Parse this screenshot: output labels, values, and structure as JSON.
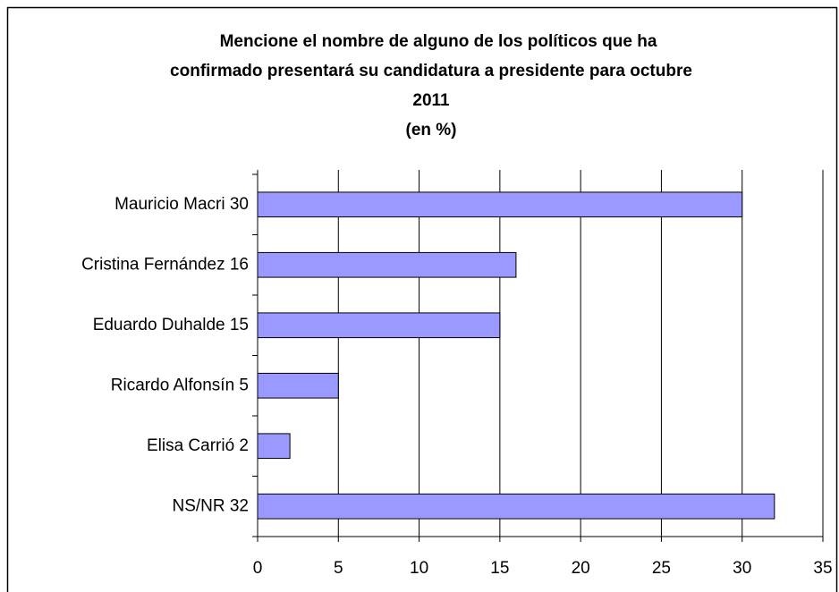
{
  "chart_data": {
    "type": "bar",
    "orientation": "horizontal",
    "title": [
      "Mencione el nombre de alguno de los políticos que ha",
      "confirmado presentará su candidatura a presidente para octubre",
      "2011"
    ],
    "subtitle": "(en %)",
    "categories": [
      "Mauricio Macri  30",
      "Cristina Fernández 16",
      "Eduardo Duhalde  15",
      "Ricardo Alfonsín 5",
      "Elisa Carrió  2",
      "NS/NR  32"
    ],
    "values": [
      30,
      16,
      15,
      5,
      2,
      32
    ],
    "color": "#9999ff",
    "xlim": [
      0,
      35
    ],
    "xticks": [
      0,
      5,
      10,
      15,
      20,
      25,
      30,
      35
    ],
    "grid": true
  }
}
